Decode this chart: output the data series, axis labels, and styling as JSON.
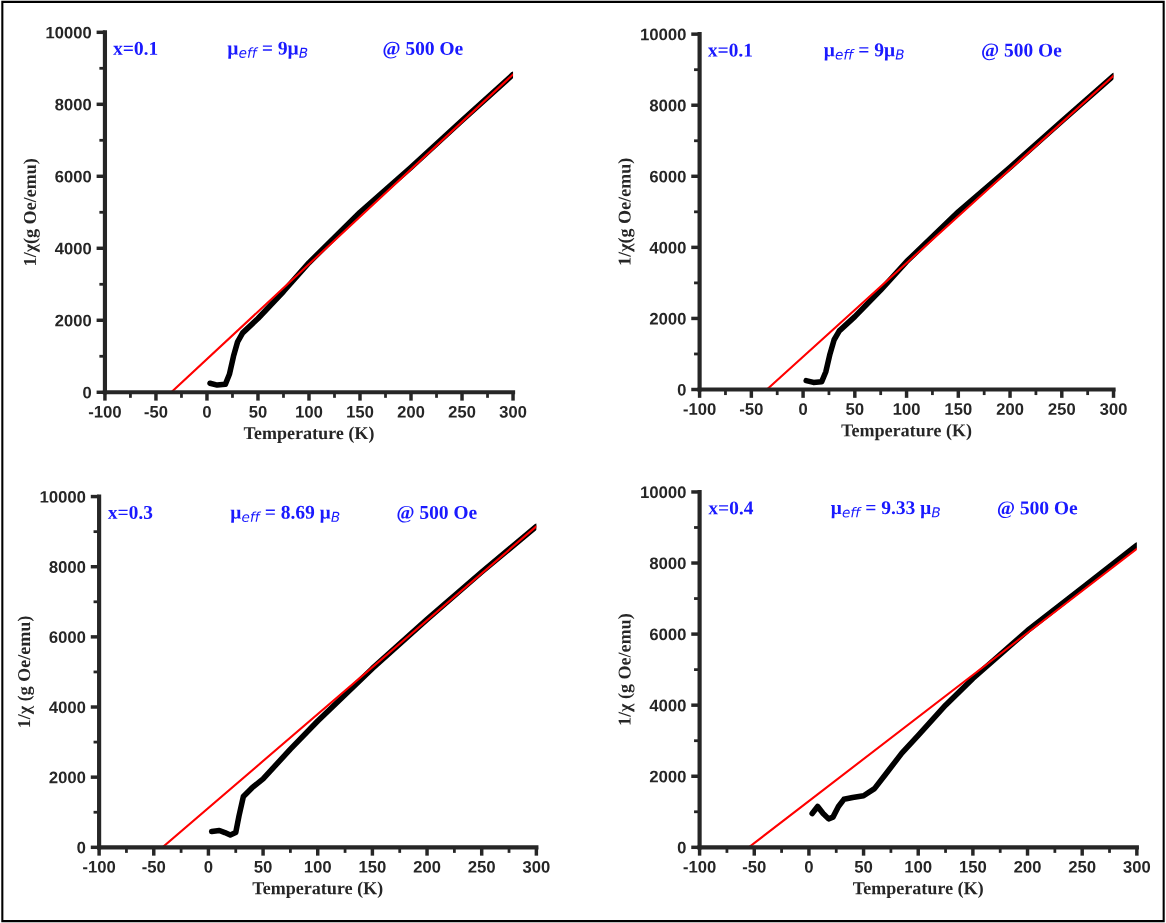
{
  "chart_data": [
    {
      "type": "line",
      "xlabel": "Temperature (K)",
      "ylabel": "1/χ(g Oe/emu)",
      "annotations": [
        "x=0.1",
        "μ$_{eff}$ = 9μ$_{B}$",
        "@ 500 Oe"
      ],
      "xlim": [
        -100,
        300
      ],
      "ylim": [
        0,
        10000
      ],
      "xticks": [
        -100,
        -50,
        0,
        50,
        100,
        150,
        200,
        250,
        300
      ],
      "yticks": [
        0,
        2000,
        4000,
        6000,
        8000,
        10000
      ],
      "grid": false,
      "legend": false,
      "series": [
        {
          "color": "#000000",
          "x": [
            3,
            10,
            18,
            22,
            26,
            30,
            35,
            50,
            75,
            100,
            150,
            200,
            250,
            300
          ],
          "values": [
            250,
            200,
            220,
            500,
            1000,
            1400,
            1650,
            2050,
            2800,
            3600,
            5000,
            6250,
            7550,
            8830
          ]
        },
        {
          "color": "#ff0000",
          "x": [
            -35,
            300
          ],
          "values": [
            0,
            8830
          ]
        }
      ]
    },
    {
      "type": "line",
      "xlabel": "Temperature (K)",
      "ylabel": "1/χ(g Oe/emu)",
      "annotations": [
        "x=0.1",
        "μ$_{eff}$ = 9μ$_{B}$",
        "@ 500 Oe"
      ],
      "xlim": [
        -100,
        300
      ],
      "ylim": [
        0,
        10000
      ],
      "xticks": [
        -100,
        -50,
        0,
        50,
        100,
        150,
        200,
        250,
        300
      ],
      "yticks": [
        0,
        2000,
        4000,
        6000,
        8000,
        10000
      ],
      "grid": false,
      "legend": false,
      "series": [
        {
          "color": "#000000",
          "x": [
            3,
            10,
            18,
            22,
            26,
            30,
            35,
            50,
            75,
            100,
            150,
            200,
            250,
            300
          ],
          "values": [
            250,
            200,
            220,
            500,
            1000,
            1400,
            1650,
            2050,
            2800,
            3600,
            5000,
            6250,
            7550,
            8830
          ]
        },
        {
          "color": "#ff0000",
          "x": [
            -35,
            300
          ],
          "values": [
            0,
            8830
          ]
        }
      ]
    },
    {
      "type": "line",
      "xlabel": "Temperature (K)",
      "ylabel": "1/χ (g Oe/emu)",
      "annotations": [
        "x=0.3",
        "μ$_{eff}$ = 8.69 μ$_{B}$",
        "@ 500 Oe"
      ],
      "xlim": [
        -100,
        300
      ],
      "ylim": [
        0,
        10000
      ],
      "xticks": [
        -100,
        -50,
        0,
        50,
        100,
        150,
        200,
        250,
        300
      ],
      "yticks": [
        0,
        2000,
        4000,
        6000,
        8000,
        10000
      ],
      "grid": false,
      "legend": false,
      "series": [
        {
          "color": "#000000",
          "x": [
            3,
            10,
            15,
            20,
            25,
            28,
            32,
            40,
            50,
            75,
            100,
            150,
            200,
            250,
            300
          ],
          "values": [
            450,
            480,
            420,
            350,
            420,
            900,
            1450,
            1700,
            1950,
            2800,
            3600,
            5100,
            6500,
            7850,
            9150
          ]
        },
        {
          "color": "#ff0000",
          "x": [
            -42,
            300
          ],
          "values": [
            0,
            9150
          ]
        }
      ]
    },
    {
      "type": "line",
      "xlabel": "Temperature (K)",
      "ylabel": "1/χ (g Oe/emu)",
      "annotations": [
        "x=0.4",
        "μ$_{eff}$ = 9.33 μ$_{B}$",
        "@ 500 Oe"
      ],
      "xlim": [
        -100,
        300
      ],
      "ylim": [
        0,
        10000
      ],
      "xticks": [
        -100,
        -50,
        0,
        50,
        100,
        150,
        200,
        250,
        300
      ],
      "yticks": [
        0,
        2000,
        4000,
        6000,
        8000,
        10000
      ],
      "grid": false,
      "legend": false,
      "series": [
        {
          "color": "#000000",
          "x": [
            3,
            8,
            13,
            18,
            22,
            27,
            32,
            40,
            50,
            60,
            70,
            85,
            100,
            125,
            150,
            200,
            250,
            300
          ],
          "values": [
            950,
            1150,
            950,
            800,
            850,
            1150,
            1350,
            1400,
            1450,
            1650,
            2050,
            2650,
            3150,
            4000,
            4750,
            6100,
            7300,
            8500
          ]
        },
        {
          "color": "#ff0000",
          "x": [
            -55,
            300
          ],
          "values": [
            0,
            8400
          ]
        }
      ]
    }
  ]
}
